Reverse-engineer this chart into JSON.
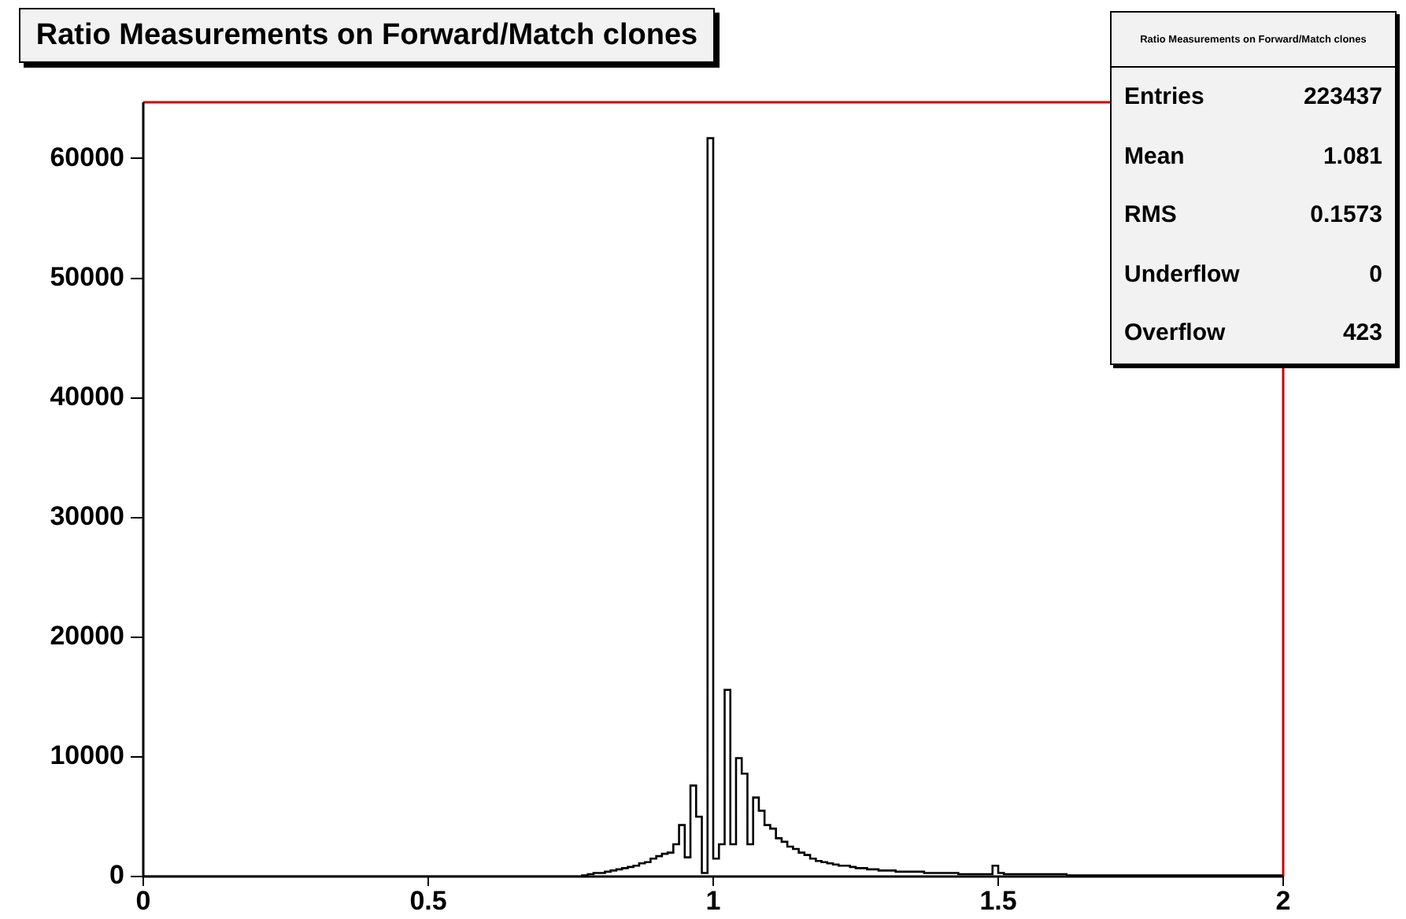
{
  "chart_data": {
    "type": "histogram",
    "title": "Ratio Measurements on Forward/Match clones",
    "bins": [
      0,
      0.01,
      0.02,
      0.03,
      0.04,
      0.05,
      0.06,
      0.07,
      0.08,
      0.09,
      0.1,
      0.11,
      0.12,
      0.13,
      0.14,
      0.15,
      0.16,
      0.17,
      0.18,
      0.19,
      0.2,
      0.21,
      0.22,
      0.23,
      0.24,
      0.25,
      0.26,
      0.27,
      0.28,
      0.29,
      0.3,
      0.31,
      0.32,
      0.33,
      0.34,
      0.35,
      0.36,
      0.37,
      0.38,
      0.39,
      0.4,
      0.41,
      0.42,
      0.43,
      0.44,
      0.45,
      0.46,
      0.47,
      0.48,
      0.49,
      0.5,
      0.51,
      0.52,
      0.53,
      0.54,
      0.55,
      0.56,
      0.57,
      0.58,
      0.59,
      0.6,
      0.61,
      0.62,
      0.63,
      0.64,
      0.65,
      0.66,
      0.67,
      0.68,
      0.69,
      0.7,
      0.71,
      0.72,
      0.73,
      0.74,
      0.75,
      0.76,
      0.77,
      0.78,
      0.79,
      0.8,
      0.81,
      0.82,
      0.83,
      0.84,
      0.85,
      0.86,
      0.87,
      0.88,
      0.89,
      0.9,
      0.91,
      0.92,
      0.93,
      0.94,
      0.95,
      0.96,
      0.97,
      0.98,
      0.99,
      1,
      1.01,
      1.02,
      1.03,
      1.04,
      1.05,
      1.06,
      1.07,
      1.08,
      1.09,
      1.1,
      1.11,
      1.12,
      1.13,
      1.14,
      1.15,
      1.16,
      1.17,
      1.18,
      1.19,
      1.2,
      1.21,
      1.22,
      1.23,
      1.24,
      1.25,
      1.26,
      1.27,
      1.28,
      1.29,
      1.3,
      1.31,
      1.32,
      1.33,
      1.34,
      1.35,
      1.36,
      1.37,
      1.38,
      1.39,
      1.4,
      1.41,
      1.42,
      1.43,
      1.44,
      1.45,
      1.46,
      1.47,
      1.48,
      1.49,
      1.5,
      1.51,
      1.52,
      1.53,
      1.54,
      1.55,
      1.56,
      1.57,
      1.58,
      1.59,
      1.6,
      1.61,
      1.62,
      1.63,
      1.64,
      1.65,
      1.66,
      1.67,
      1.68,
      1.69,
      1.7,
      1.71,
      1.72,
      1.73,
      1.74,
      1.75,
      1.76,
      1.77,
      1.78,
      1.79,
      1.8,
      1.81,
      1.82,
      1.83,
      1.84,
      1.85,
      1.86,
      1.87,
      1.88,
      1.89,
      1.9,
      1.91,
      1.92,
      1.93,
      1.94,
      1.95,
      1.96,
      1.97,
      1.98,
      1.99,
      2
    ],
    "values": [
      0,
      0,
      0,
      0,
      0,
      0,
      0,
      0,
      0,
      0,
      0,
      0,
      0,
      0,
      0,
      0,
      0,
      0,
      0,
      0,
      0,
      0,
      0,
      0,
      0,
      0,
      0,
      0,
      0,
      0,
      0,
      0,
      0,
      0,
      0,
      0,
      0,
      0,
      0,
      0,
      0,
      0,
      0,
      0,
      0,
      0,
      0,
      0,
      0,
      0,
      0,
      0,
      0,
      0,
      0,
      0,
      0,
      0,
      0,
      0,
      0,
      0,
      0,
      0,
      0,
      0,
      0,
      0,
      0,
      0,
      0,
      0,
      0,
      0,
      0,
      0,
      0,
      100,
      200,
      300,
      300,
      400,
      500,
      600,
      700,
      800,
      900,
      1100,
      1200,
      1500,
      1700,
      1900,
      2000,
      2700,
      4300,
      1600,
      7600,
      5000,
      300,
      61700,
      1500,
      2700,
      15600,
      2700,
      9900,
      8600,
      2700,
      6600,
      5500,
      4300,
      4000,
      3200,
      2900,
      2500,
      2300,
      2000,
      1800,
      1500,
      1300,
      1200,
      1100,
      1000,
      900,
      900,
      800,
      700,
      700,
      600,
      600,
      500,
      500,
      500,
      400,
      400,
      400,
      400,
      400,
      300,
      300,
      300,
      300,
      300,
      300,
      200,
      200,
      200,
      200,
      200,
      200,
      900,
      300,
      200,
      200,
      200,
      200,
      200,
      200,
      200,
      200,
      200,
      200,
      200,
      100,
      100,
      100,
      100,
      100,
      100,
      100,
      100,
      100,
      100,
      100,
      100,
      100,
      100,
      100,
      100,
      100,
      100,
      100,
      100,
      100,
      100,
      100,
      100,
      100,
      100,
      100,
      100,
      100,
      100,
      100,
      100,
      100,
      100,
      100,
      100,
      100,
      100
    ],
    "color": "#000000",
    "xlim": [
      0,
      2
    ],
    "xticks": [
      0,
      0.5,
      1,
      1.5,
      2
    ],
    "ylim": [
      0,
      64700
    ],
    "yticks": [
      0,
      10000,
      20000,
      30000,
      40000,
      50000,
      60000
    ],
    "grid": false,
    "legend": false,
    "annotations": [
      "Ratio Measurements on Forward/Match clones",
      "Entries",
      "223437",
      "Mean",
      "1.081",
      "RMS",
      "0.1573",
      "Underflow",
      "0",
      "Overflow",
      "423"
    ]
  }
}
